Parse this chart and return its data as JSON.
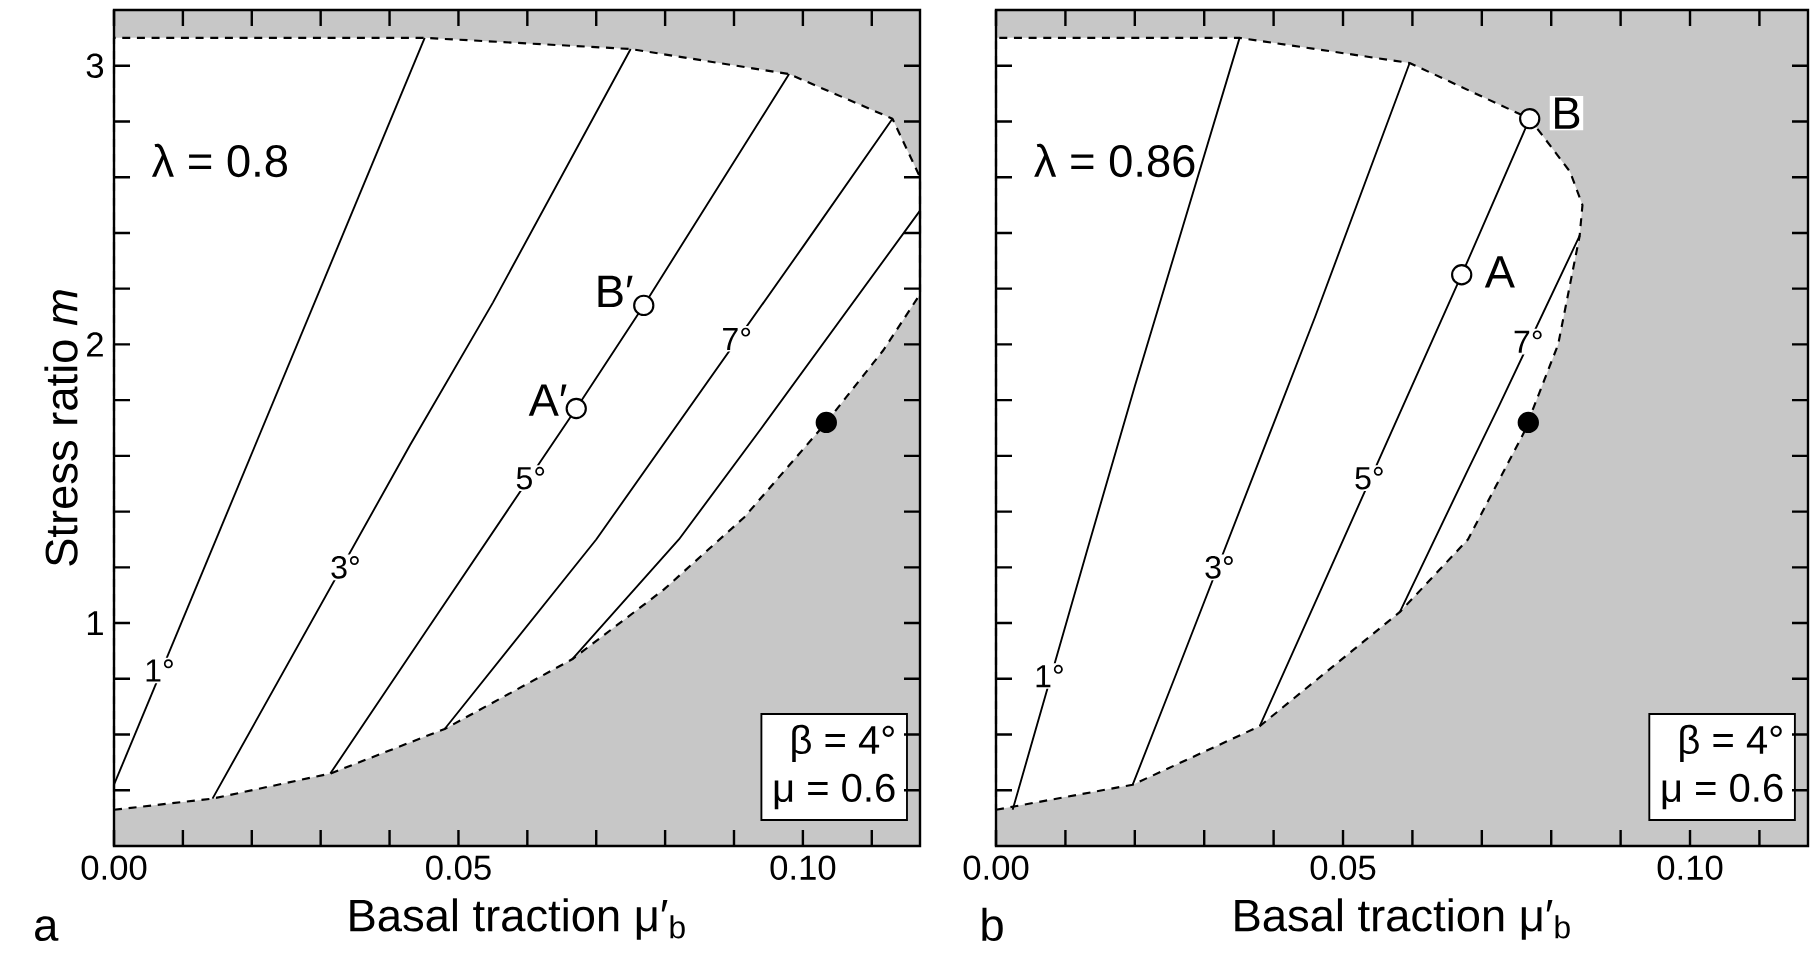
{
  "chart_data": [
    {
      "type": "line",
      "xlabel": "Basal traction μ′$_{b}$",
      "ylabel": "Stress ratio *m*",
      "xlim": [
        0,
        0.117
      ],
      "ylim": [
        0.2,
        3.2
      ],
      "xticks": [
        {
          "value": 0,
          "label": "0.00"
        },
        {
          "value": 0.01,
          "label": null
        },
        {
          "value": 0.02,
          "label": null
        },
        {
          "value": 0.03,
          "label": null
        },
        {
          "value": 0.04,
          "label": null
        },
        {
          "value": 0.05,
          "label": "0.05"
        },
        {
          "value": 0.06,
          "label": null
        },
        {
          "value": 0.07,
          "label": null
        },
        {
          "value": 0.08,
          "label": null
        },
        {
          "value": 0.09,
          "label": null
        },
        {
          "value": 0.1,
          "label": "0.10"
        },
        {
          "value": 0.11,
          "label": null
        }
      ],
      "yticks": [
        {
          "value": 0.4,
          "label": null
        },
        {
          "value": 0.6,
          "label": null
        },
        {
          "value": 0.8,
          "label": null
        },
        1,
        {
          "value": 1.2,
          "label": null
        },
        {
          "value": 1.4,
          "label": null
        },
        {
          "value": 1.6,
          "label": null
        },
        {
          "value": 1.8,
          "label": null
        },
        2,
        {
          "value": 2.2,
          "label": null
        },
        {
          "value": 2.4,
          "label": null
        },
        {
          "value": 2.6,
          "label": null
        },
        {
          "value": 2.8,
          "label": null
        },
        3
      ],
      "series": [
        {
          "type": "area",
          "color": "#ffffff",
          "line_style": "dashed",
          "x": [
            0,
            0.0143,
            0.0314,
            0.048,
            0.0665,
            0.0798,
            0.0915,
            0.1034,
            0.1117,
            0.117,
            0.117,
            0.113,
            0.098,
            0.075,
            0.0451,
            0
          ],
          "values": [
            0.33,
            0.37,
            0.46,
            0.62,
            0.87,
            1.12,
            1.38,
            1.72,
            1.98,
            2.18,
            2.6,
            2.81,
            2.97,
            3.06,
            3.1,
            3.1
          ]
        },
        {
          "type": "line",
          "color": "#000000",
          "x": [
            0,
            0.0451
          ],
          "values": [
            0.42,
            3.1
          ]
        },
        {
          "type": "line",
          "color": "#000000",
          "x": [
            0.0143,
            0.043,
            0.055,
            0.075
          ],
          "values": [
            0.37,
            1.64,
            2.15,
            3.06
          ]
        },
        {
          "type": "line",
          "color": "#000000",
          "x": [
            0.0314,
            0.045,
            0.0671,
            0.0769,
            0.098
          ],
          "values": [
            0.46,
            0.96,
            1.77,
            2.14,
            2.97
          ]
        },
        {
          "type": "line",
          "color": "#000000",
          "x": [
            0.048,
            0.07,
            0.1,
            0.113
          ],
          "values": [
            0.62,
            1.3,
            2.35,
            2.81
          ]
        },
        {
          "type": "line",
          "color": "#000000",
          "x": [
            0.0665,
            0.082,
            0.094,
            0.117
          ],
          "values": [
            0.87,
            1.3,
            1.7,
            2.48
          ]
        },
        {
          "type": "scatter",
          "marker": "circle",
          "x": [
            0.0671,
            0.0769,
            0.1034
          ],
          "values": [
            1.77,
            2.14,
            1.72
          ],
          "colors": [
            "#ffffff",
            "#ffffff",
            "#000000"
          ]
        }
      ],
      "annotations": [
        "λ = 0.8",
        "β = 4°",
        "μ = 0.6",
        "a",
        {
          "text": "1°",
          "x": 0.0066,
          "y": 0.83
        },
        {
          "text": "3°",
          "x": 0.0336,
          "y": 1.2
        },
        {
          "text": "5°",
          "x": 0.0605,
          "y": 1.52
        },
        {
          "text": "7°",
          "x": 0.0904,
          "y": 2.02
        },
        {
          "text": "A′",
          "x": 0.063,
          "y": 1.8
        },
        {
          "text": "B′",
          "x": 0.0726,
          "y": 2.19
        }
      ]
    },
    {
      "type": "line",
      "xlabel": "Basal traction μ′$_{b}$",
      "tick_labels": "x",
      "xlim": [
        0,
        0.117
      ],
      "ylim": [
        0.2,
        3.2
      ],
      "xticks": [
        {
          "value": 0,
          "label": "0.00"
        },
        {
          "value": 0.01,
          "label": null
        },
        {
          "value": 0.02,
          "label": null
        },
        {
          "value": 0.03,
          "label": null
        },
        {
          "value": 0.04,
          "label": null
        },
        {
          "value": 0.05,
          "label": "0.05"
        },
        {
          "value": 0.06,
          "label": null
        },
        {
          "value": 0.07,
          "label": null
        },
        {
          "value": 0.08,
          "label": null
        },
        {
          "value": 0.09,
          "label": null
        },
        {
          "value": 0.1,
          "label": "0.10"
        },
        {
          "value": 0.11,
          "label": null
        }
      ],
      "yticks": [
        {
          "value": 0.4,
          "label": null
        },
        {
          "value": 0.6,
          "label": null
        },
        {
          "value": 0.8,
          "label": null
        },
        1,
        {
          "value": 1.2,
          "label": null
        },
        {
          "value": 1.4,
          "label": null
        },
        {
          "value": 1.6,
          "label": null
        },
        {
          "value": 1.8,
          "label": null
        },
        2,
        {
          "value": 2.2,
          "label": null
        },
        {
          "value": 2.4,
          "label": null
        },
        {
          "value": 2.6,
          "label": null
        },
        {
          "value": 2.8,
          "label": null
        },
        3
      ],
      "series": [
        {
          "type": "area",
          "color": "#ffffff",
          "line_style": "dashed",
          "x": [
            0,
            0.0197,
            0.038,
            0.0582,
            0.068,
            0.076,
            0.081,
            0.0841,
            0.0845,
            0.0827,
            0.0769,
            0.0596,
            0.0351,
            0
          ],
          "values": [
            0.33,
            0.42,
            0.63,
            1.04,
            1.3,
            1.68,
            2.0,
            2.39,
            2.5,
            2.62,
            2.81,
            3.01,
            3.1,
            3.1
          ]
        },
        {
          "type": "line",
          "color": "#000000",
          "x": [
            0.0024,
            0.013,
            0.02,
            0.0351
          ],
          "values": [
            0.33,
            1.25,
            1.85,
            3.1
          ]
        },
        {
          "type": "line",
          "color": "#000000",
          "x": [
            0.0197,
            0.026,
            0.046,
            0.0596
          ],
          "values": [
            0.42,
            0.82,
            2.1,
            3.01
          ]
        },
        {
          "type": "line",
          "color": "#000000",
          "x": [
            0.038,
            0.047,
            0.0671,
            0.0769
          ],
          "values": [
            0.63,
            1.13,
            2.25,
            2.81
          ]
        },
        {
          "type": "line",
          "color": "#000000",
          "x": [
            0.0582,
            0.068,
            0.0725,
            0.0841
          ],
          "values": [
            1.04,
            1.55,
            1.78,
            2.39
          ]
        },
        {
          "type": "scatter",
          "marker": "circle",
          "x": [
            0.0671,
            0.0769,
            0.0767
          ],
          "values": [
            2.25,
            2.81,
            1.72
          ],
          "colors": [
            "#ffffff",
            "#ffffff",
            "#000000"
          ]
        }
      ],
      "annotations": [
        "λ = 0.86",
        "β = 4°",
        "μ = 0.6",
        "b",
        {
          "text": "1°",
          "x": 0.0077,
          "y": 0.81
        },
        {
          "text": "3°",
          "x": 0.0322,
          "y": 1.2
        },
        {
          "text": "5°",
          "x": 0.0538,
          "y": 1.52
        },
        {
          "text": "7°",
          "x": 0.0767,
          "y": 2.01
        },
        {
          "text": "A",
          "x": 0.0726,
          "y": 2.26
        },
        {
          "text": "B",
          "x": 0.0822,
          "y": 2.83
        }
      ]
    }
  ]
}
